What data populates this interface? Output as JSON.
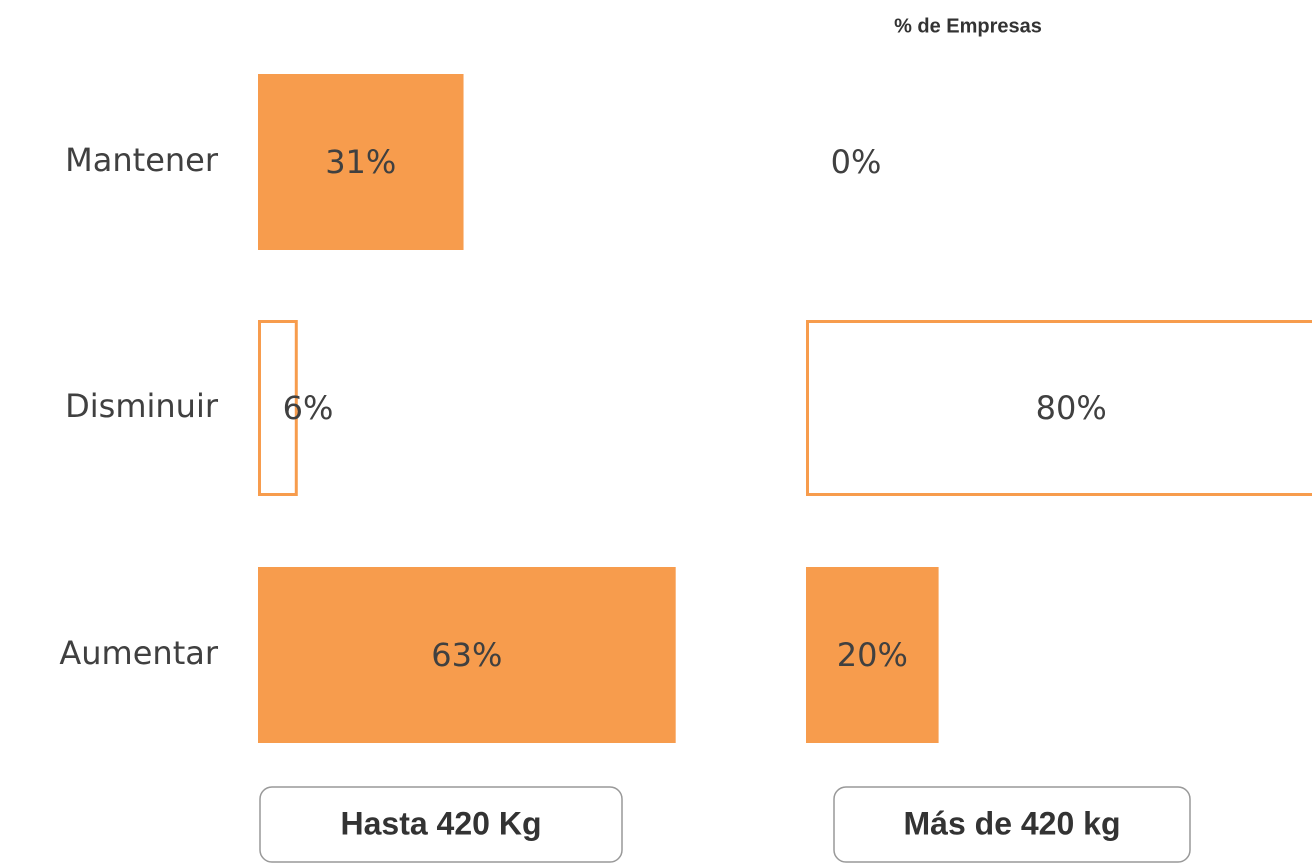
{
  "chart_data": {
    "type": "bar",
    "title": "% de Empresas",
    "categories": [
      "Mantener",
      "Disminuir",
      "Aumentar"
    ],
    "color": "#f79c4d",
    "bar_styles": [
      "fill",
      "outline",
      "fill"
    ],
    "panels": [
      {
        "name": "Hasta 420 Kg",
        "values": [
          31,
          6,
          63
        ],
        "value_labels": [
          "31%",
          "6%",
          "63%"
        ]
      },
      {
        "name": "Más de 420 kg",
        "values": [
          0,
          80,
          20
        ],
        "value_labels": [
          "0%",
          "80%",
          "20%"
        ]
      }
    ]
  }
}
